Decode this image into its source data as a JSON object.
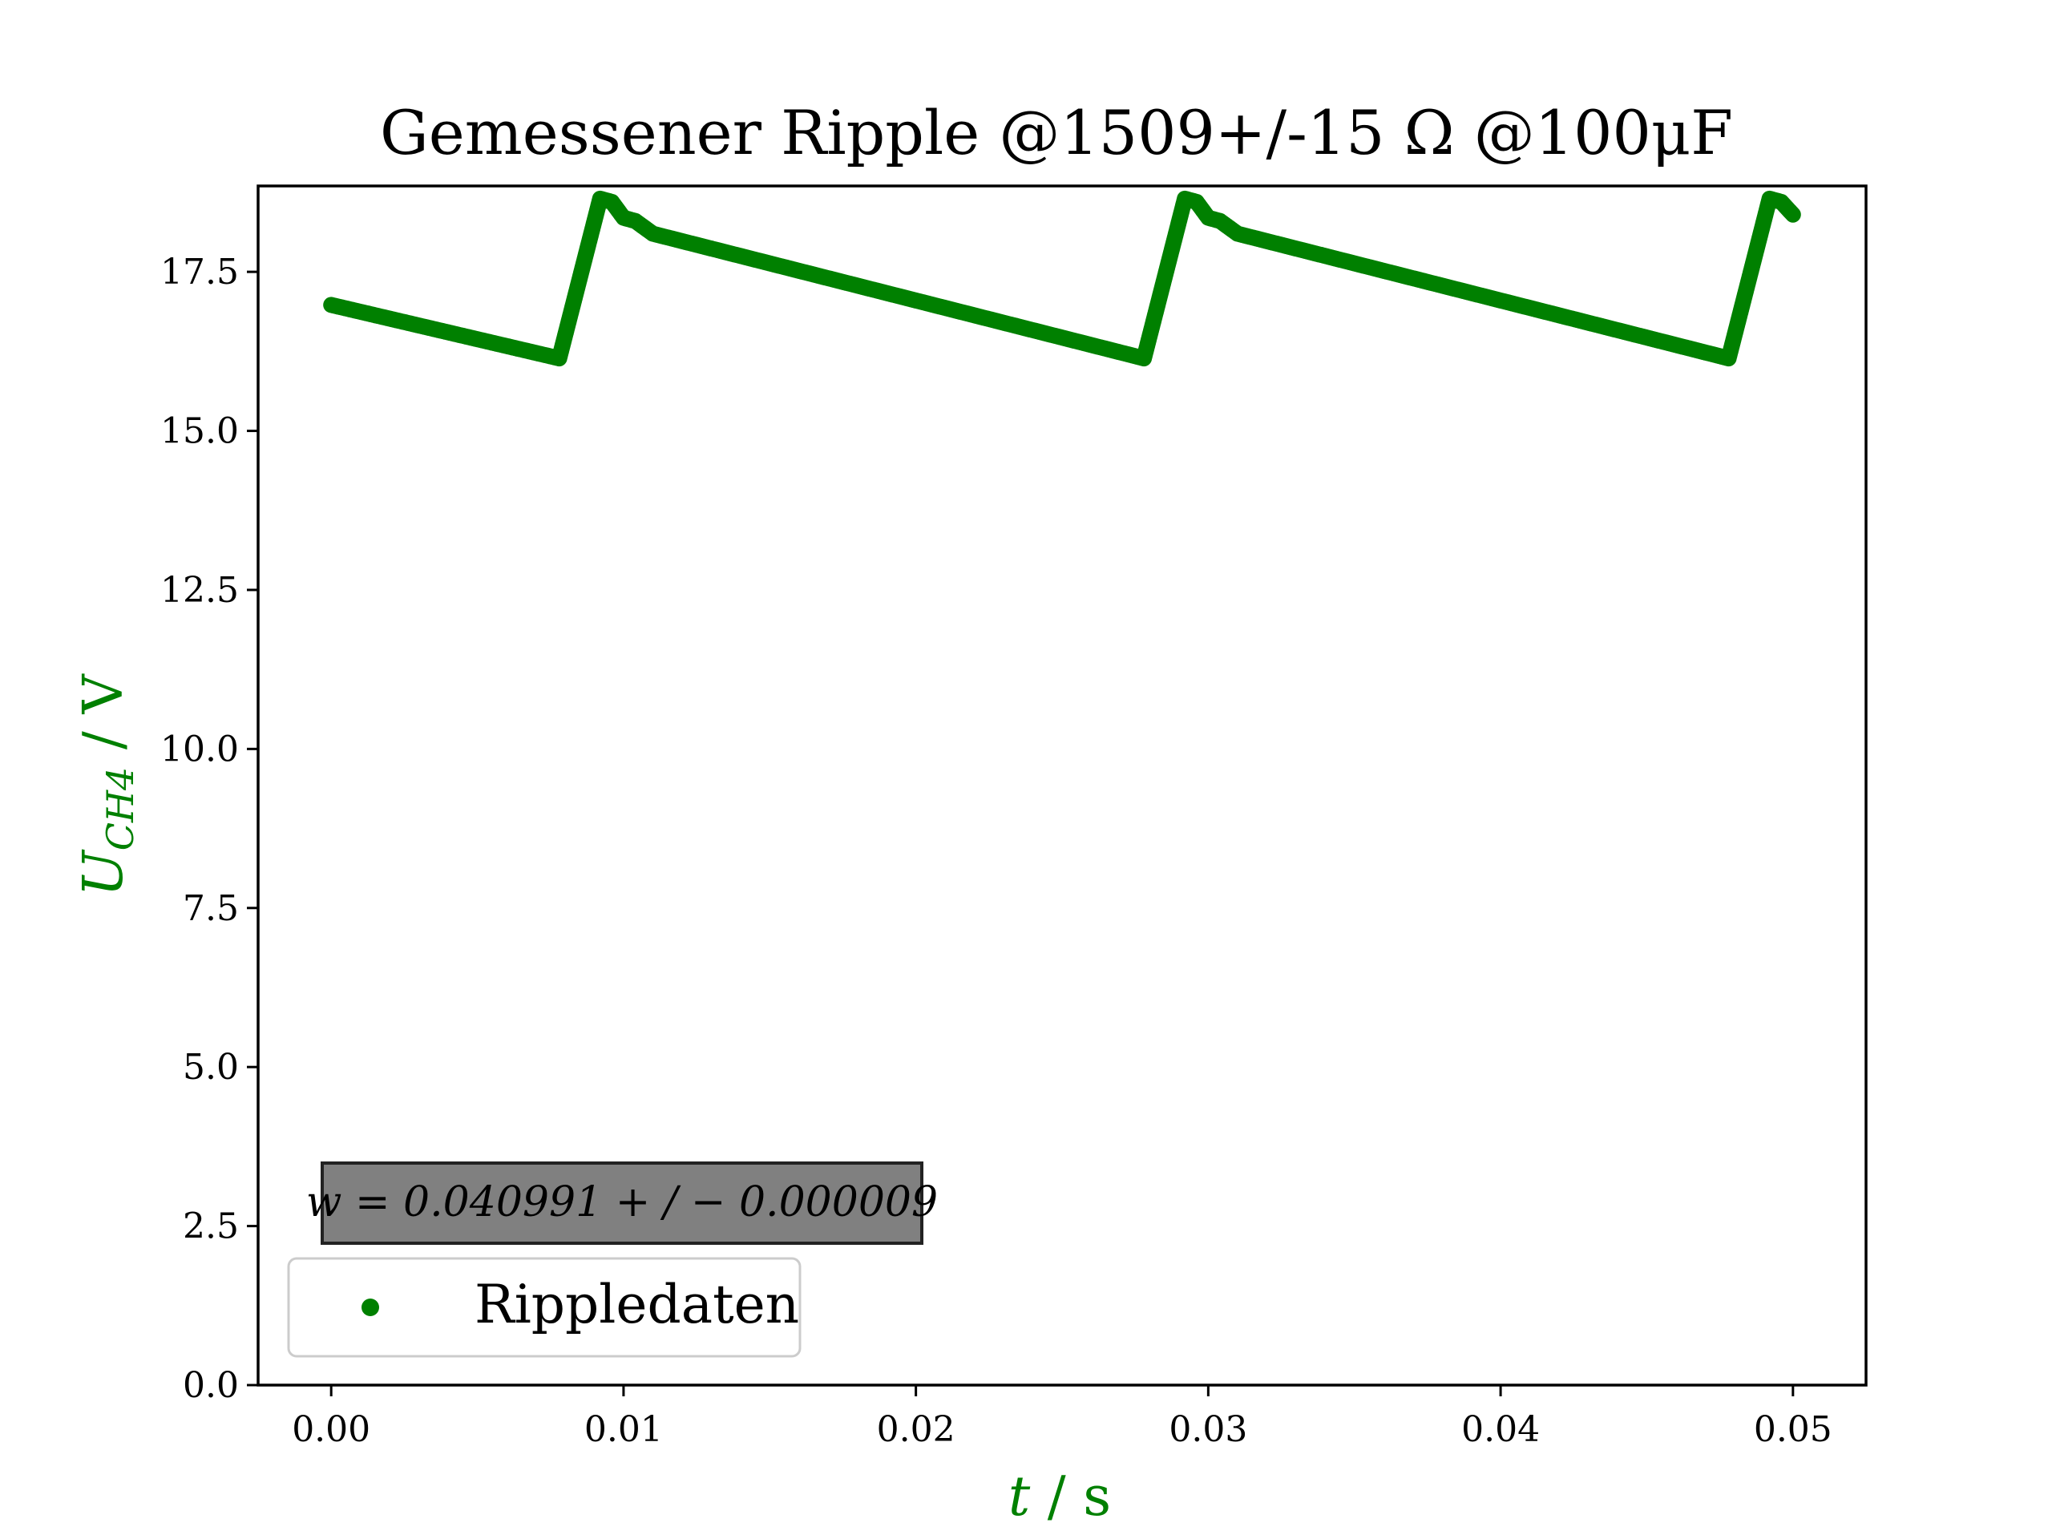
{
  "chart_data": {
    "type": "scatter",
    "title": "Gemessener Ripple @1509+/-15 Ω @100μF",
    "xlabel": {
      "var": "t",
      "unit": " / s"
    },
    "ylabel": {
      "var": "U",
      "sub": "CH4",
      "unit": " / V"
    },
    "xlim": [
      -0.0025,
      0.0525
    ],
    "ylim": [
      0,
      18.85
    ],
    "x_ticks": [
      0.0,
      0.01,
      0.02,
      0.03,
      0.04,
      0.05
    ],
    "x_tick_labels": [
      "0.00",
      "0.01",
      "0.02",
      "0.03",
      "0.04",
      "0.05"
    ],
    "y_ticks": [
      0.0,
      2.5,
      5.0,
      7.5,
      10.0,
      12.5,
      15.0,
      17.5
    ],
    "y_tick_labels": [
      "0.0",
      "2.5",
      "5.0",
      "7.5",
      "10.0",
      "12.5",
      "15.0",
      "17.5"
    ],
    "grid": false,
    "legend": {
      "placement": "lower-left",
      "entries": [
        "Rippledaten"
      ]
    },
    "annotation": {
      "text": "w = 0.040991 + / − 0.000009",
      "placement": "lower-left"
    },
    "colors": {
      "series": "#008000",
      "label": "#008000",
      "annotation_bg": "#808080"
    },
    "series": [
      {
        "name": "Rippledaten",
        "color": "#008000",
        "points": [
          [
            0.0,
            16.98
          ],
          [
            0.0078,
            16.14
          ],
          [
            0.0092,
            18.65
          ],
          [
            0.0096,
            18.6
          ],
          [
            0.01,
            18.35
          ],
          [
            0.0104,
            18.3
          ],
          [
            0.011,
            18.1
          ],
          [
            0.0278,
            16.14
          ],
          [
            0.0292,
            18.65
          ],
          [
            0.0296,
            18.6
          ],
          [
            0.03,
            18.35
          ],
          [
            0.0304,
            18.3
          ],
          [
            0.031,
            18.1
          ],
          [
            0.0478,
            16.14
          ],
          [
            0.0492,
            18.65
          ],
          [
            0.0496,
            18.6
          ],
          [
            0.05,
            18.4
          ]
        ]
      }
    ]
  }
}
